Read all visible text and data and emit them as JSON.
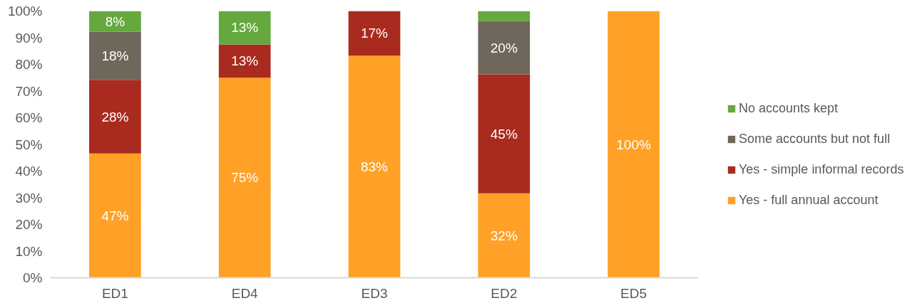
{
  "chart_data": {
    "type": "bar",
    "stacked": true,
    "legend": "right",
    "categories": [
      "ED1",
      "ED4",
      "ED3",
      "ED2",
      "ED5"
    ],
    "ylim": [
      0,
      100
    ],
    "yticks": [
      {
        "value": 0,
        "label": "0%"
      },
      {
        "value": 10,
        "label": "10%"
      },
      {
        "value": 20,
        "label": "20%"
      },
      {
        "value": 30,
        "label": "30%"
      },
      {
        "value": 40,
        "label": "40%"
      },
      {
        "value": 50,
        "label": "50%"
      },
      {
        "value": 60,
        "label": "60%"
      },
      {
        "value": 70,
        "label": "70%"
      },
      {
        "value": 80,
        "label": "80%"
      },
      {
        "value": 90,
        "label": "90%"
      },
      {
        "value": 100,
        "label": "100%"
      }
    ],
    "series": [
      {
        "name": "Yes - full annual account",
        "color": "#ffa126",
        "values": [
          46.6,
          75,
          83.3,
          31.7,
          100
        ],
        "value_labels": [
          "47%",
          "75%",
          "83%",
          "32%",
          "100%"
        ]
      },
      {
        "name": "Yes - simple informal records",
        "color": "#a92a1f",
        "values": [
          27.6,
          12.5,
          16.7,
          44.6,
          null
        ],
        "value_labels": [
          "28%",
          "13%",
          "17%",
          "45%",
          null
        ]
      },
      {
        "name": "Some accounts but not full",
        "color": "#6f675b",
        "values": [
          18.0,
          null,
          null,
          19.9,
          null
        ],
        "value_labels": [
          "18%",
          null,
          null,
          "20%",
          null
        ]
      },
      {
        "name": "No accounts kept",
        "color": "#65a83e",
        "values": [
          7.8,
          12.5,
          null,
          3.8,
          null
        ],
        "value_labels": [
          "8%",
          "13%",
          null,
          null,
          null
        ]
      }
    ]
  }
}
